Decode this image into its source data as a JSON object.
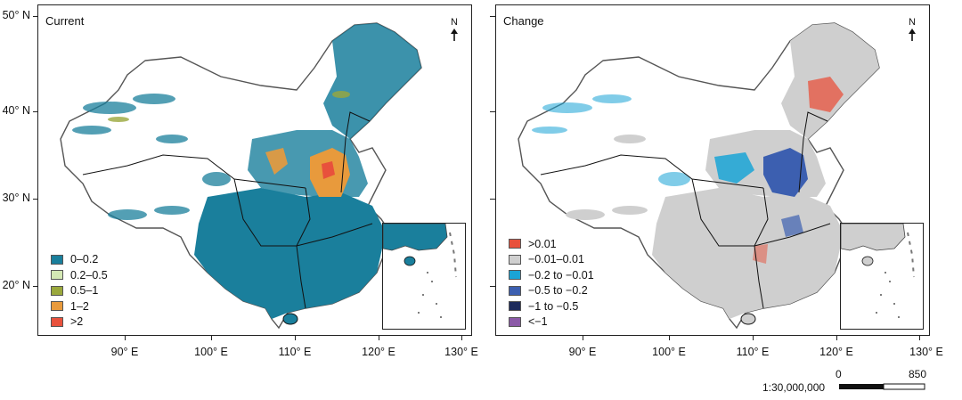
{
  "panels": [
    {
      "title": "Current",
      "legend": [
        {
          "label": "0–0.2",
          "color": "#1a7f9c"
        },
        {
          "label": "0.2–0.5",
          "color": "#d4e8b4"
        },
        {
          "label": "0.5–1",
          "color": "#9aa83c"
        },
        {
          "label": "1–2",
          "color": "#e89a3c"
        },
        {
          "label": ">2",
          "color": "#e8513c"
        }
      ]
    },
    {
      "title": "Change",
      "legend": [
        {
          "label": ">0.01",
          "color": "#e8513c"
        },
        {
          "label": "−0.01–0.01",
          "color": "#cfcfcf"
        },
        {
          "label": "−0.2 to −0.01",
          "color": "#1aa4d6"
        },
        {
          "label": "−0.5 to −0.2",
          "color": "#3c5fb0"
        },
        {
          "label": "−1 to −0.5",
          "color": "#1c2a5c"
        },
        {
          "label": "<−1",
          "color": "#8c5aa8"
        }
      ]
    }
  ],
  "north_label": "N",
  "y_axis_labels": [
    "50° N",
    "40° N",
    "30° N",
    "20° N"
  ],
  "x_axis_labels": [
    "90° E",
    "100° E",
    "110° E",
    "120° E",
    "130° E"
  ],
  "scale": {
    "ratio": "1:30,000,000",
    "start": "0",
    "end": "850"
  }
}
